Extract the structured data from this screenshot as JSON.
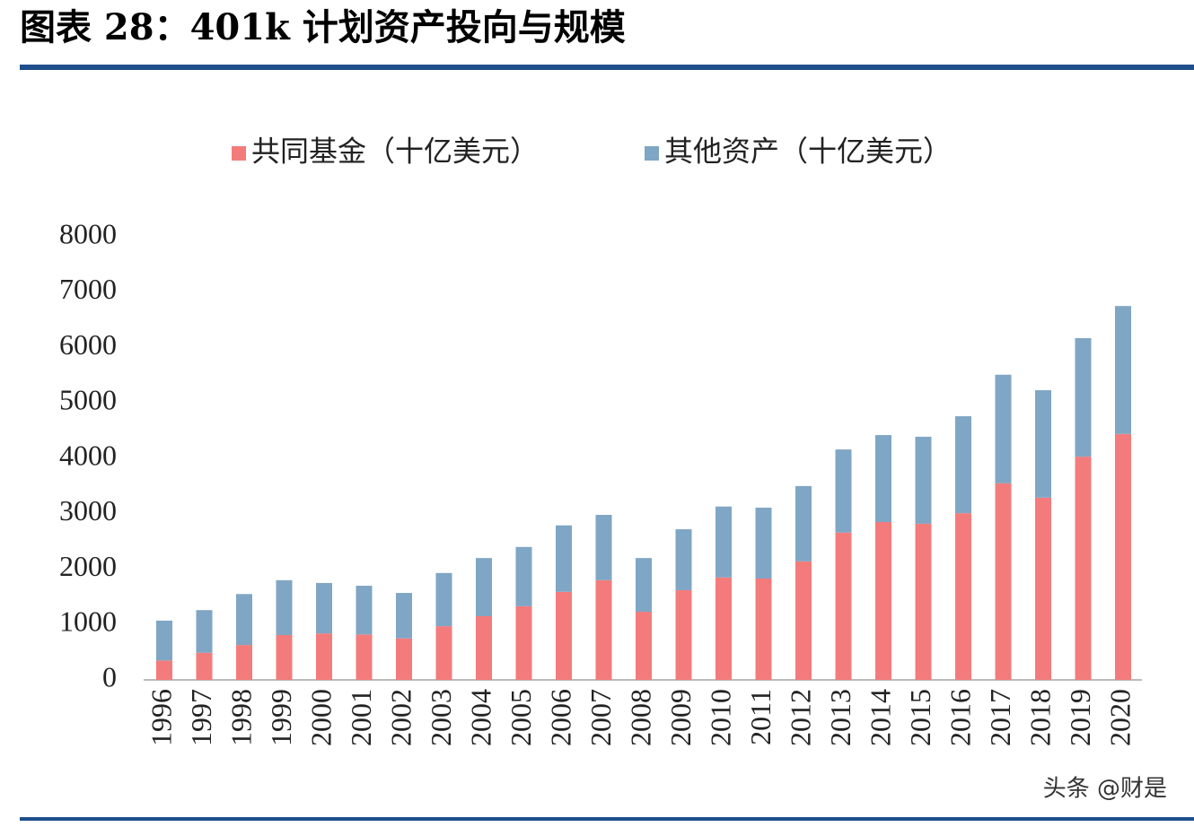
{
  "chart_data": {
    "type": "stacked_bar",
    "title": "图表 28：401k 计划资产投向与规模",
    "categories": [
      "1996",
      "1997",
      "1998",
      "1999",
      "2000",
      "2001",
      "2002",
      "2003",
      "2004",
      "2005",
      "2006",
      "2007",
      "2008",
      "2009",
      "2010",
      "2011",
      "2012",
      "2013",
      "2014",
      "2015",
      "2016",
      "2017",
      "2018",
      "2019",
      "2020"
    ],
    "series": [
      {
        "name": "共同基金（十亿美元）",
        "color": "#f47b7b",
        "values": [
          350,
          490,
          630,
          810,
          840,
          820,
          750,
          970,
          1150,
          1330,
          1590,
          1800,
          1230,
          1620,
          1850,
          1830,
          2140,
          2660,
          2850,
          2820,
          3010,
          3550,
          3290,
          4030,
          4440
        ]
      },
      {
        "name": "其他资产（十亿美元）",
        "color": "#7fa6c4",
        "values": [
          720,
          770,
          920,
          990,
          910,
          880,
          820,
          960,
          1050,
          1070,
          1200,
          1180,
          970,
          1100,
          1280,
          1280,
          1360,
          1500,
          1570,
          1570,
          1750,
          1960,
          1940,
          2140,
          2310
        ]
      }
    ],
    "ylim": [
      0,
      8000
    ],
    "yticks": [
      0,
      1000,
      2000,
      3000,
      4000,
      5000,
      6000,
      7000,
      8000
    ],
    "grid": false,
    "legend": "top"
  },
  "watermark": "头条 @财是"
}
